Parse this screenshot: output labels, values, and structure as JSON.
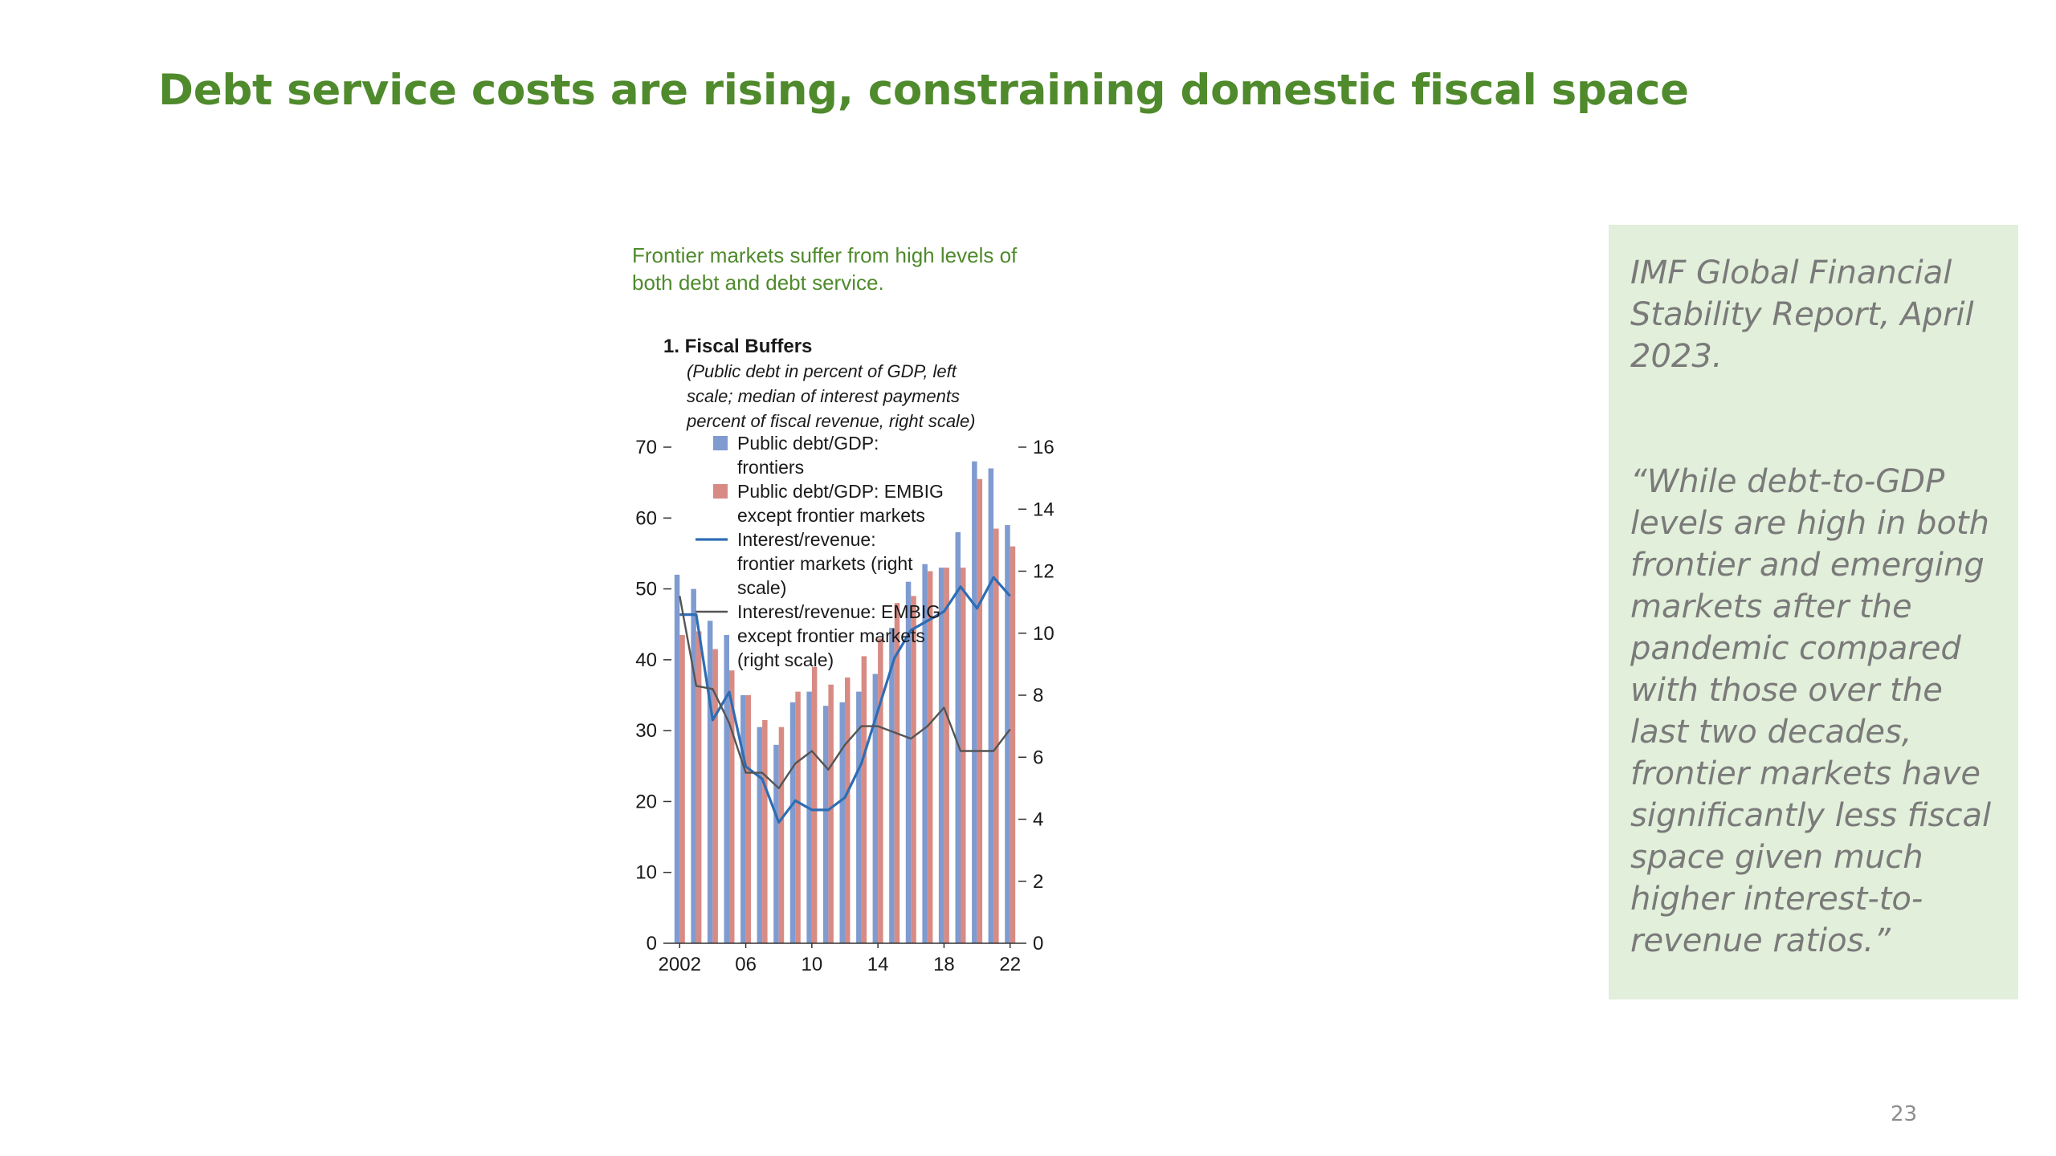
{
  "slide": {
    "title": "Debt service costs are rising, constraining domestic fiscal space",
    "page_number": "23"
  },
  "quote_panel": {
    "source": "IMF Global Financial Stability Report, April 2023.",
    "quote": "“While debt-to-GDP levels are high in both frontier and emerging markets after the pandemic compared with those over the last two decades, frontier markets have significantly less fiscal space given much higher interest-to-revenue ratios.”"
  },
  "chart_data": {
    "type": "bar",
    "figure_caption": "Frontier markets suffer from high levels of both debt and debt service.",
    "title": "1. Fiscal Buffers",
    "subtitle": "(Public debt in percent of GDP, left scale; median of interest payments percent of fiscal revenue, right scale)",
    "x": [
      2002,
      2003,
      2004,
      2005,
      2006,
      2007,
      2008,
      2009,
      2010,
      2011,
      2012,
      2013,
      2014,
      2015,
      2016,
      2017,
      2018,
      2019,
      2020,
      2021,
      2022
    ],
    "x_tick_labels": [
      {
        "year": 2002,
        "label": "2002"
      },
      {
        "year": 2006,
        "label": "06"
      },
      {
        "year": 2010,
        "label": "10"
      },
      {
        "year": 2014,
        "label": "14"
      },
      {
        "year": 2018,
        "label": "18"
      },
      {
        "year": 2022,
        "label": "22"
      }
    ],
    "ylim_left": [
      0,
      70
    ],
    "yticks_left": [
      0,
      10,
      20,
      30,
      40,
      50,
      60,
      70
    ],
    "ylim_right": [
      0,
      16
    ],
    "yticks_right": [
      0,
      2,
      4,
      6,
      8,
      10,
      12,
      14,
      16
    ],
    "series": [
      {
        "name": "Public debt/GDP: frontiers",
        "kind": "bar",
        "axis": "left",
        "color": "#7f9bd0",
        "values": [
          52,
          50,
          45.5,
          43.5,
          35,
          30.5,
          28,
          34,
          35.5,
          33.5,
          34,
          35.5,
          38,
          44.5,
          51,
          53.5,
          53,
          58,
          68,
          67,
          59
        ]
      },
      {
        "name": "Public debt/GDP: EMBIG except frontier markets",
        "kind": "bar",
        "axis": "left",
        "color": "#d88b84",
        "values": [
          43.5,
          44,
          41.5,
          38.5,
          35,
          31.5,
          30.5,
          35.5,
          39,
          36.5,
          37.5,
          40.5,
          43,
          48,
          49,
          52.5,
          53,
          53,
          65.5,
          58.5,
          56
        ]
      },
      {
        "name": "Interest/revenue: frontier markets (right scale)",
        "kind": "line",
        "axis": "right",
        "color": "#2e6db4",
        "values": [
          10.6,
          10.6,
          7.2,
          8.1,
          5.7,
          5.3,
          3.9,
          4.6,
          4.3,
          4.3,
          4.7,
          5.8,
          7.5,
          9.2,
          10.1,
          10.4,
          10.7,
          11.5,
          10.8,
          11.8,
          11.2
        ]
      },
      {
        "name": "Interest/revenue: EMBIG except frontier markets (right scale)",
        "kind": "line",
        "axis": "right",
        "color": "#555555",
        "values": [
          11.2,
          8.3,
          8.2,
          7.1,
          5.5,
          5.5,
          5.0,
          5.8,
          6.2,
          5.6,
          6.4,
          7.0,
          7.0,
          6.8,
          6.6,
          7.0,
          7.6,
          6.2,
          6.2,
          6.2,
          6.9
        ]
      }
    ],
    "legend_placement": "top-left inside plot"
  }
}
